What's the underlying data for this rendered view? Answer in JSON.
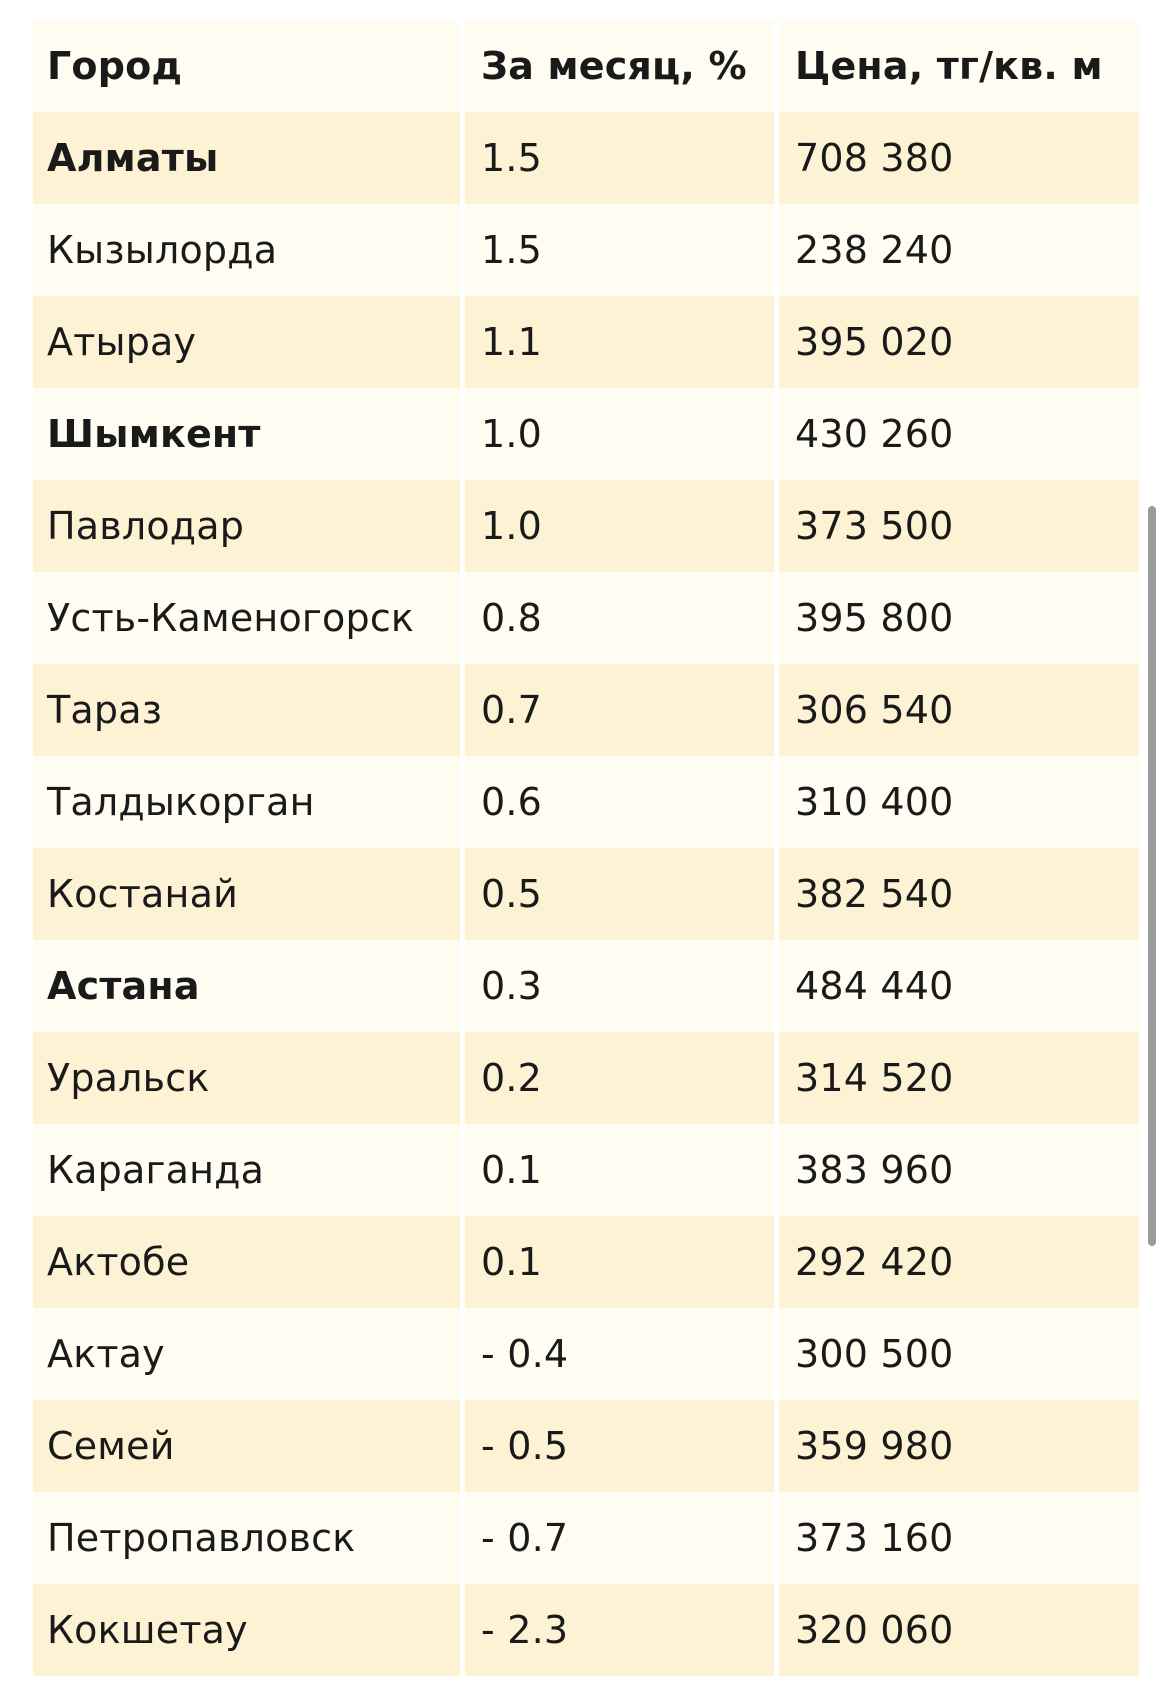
{
  "table": {
    "headers": [
      "Город",
      "За месяц, %",
      "Цена, тг/кв. м"
    ],
    "rows": [
      {
        "city": "Алматы",
        "change": "1.5",
        "price": "708 380",
        "bold": true
      },
      {
        "city": "Кызылорда",
        "change": "1.5",
        "price": "238 240",
        "bold": false
      },
      {
        "city": "Атырау",
        "change": "1.1",
        "price": "395 020",
        "bold": false
      },
      {
        "city": "Шымкент",
        "change": "1.0",
        "price": "430 260",
        "bold": true
      },
      {
        "city": "Павлодар",
        "change": "1.0",
        "price": "373 500",
        "bold": false
      },
      {
        "city": "Усть-Каменогорск",
        "change": "0.8",
        "price": "395 800",
        "bold": false
      },
      {
        "city": "Тараз",
        "change": "0.7",
        "price": "306 540",
        "bold": false
      },
      {
        "city": "Талдыкорган",
        "change": "0.6",
        "price": "310 400",
        "bold": false
      },
      {
        "city": "Костанай",
        "change": "0.5",
        "price": "382 540",
        "bold": false
      },
      {
        "city": "Астана",
        "change": "0.3",
        "price": "484 440",
        "bold": true
      },
      {
        "city": "Уральск",
        "change": "0.2",
        "price": "314 520",
        "bold": false
      },
      {
        "city": "Караганда",
        "change": "0.1",
        "price": "383 960",
        "bold": false
      },
      {
        "city": "Актобе",
        "change": "0.1",
        "price": "292 420",
        "bold": false
      },
      {
        "city": "Актау",
        "change": "- 0.4",
        "price": "300 500",
        "bold": false
      },
      {
        "city": "Семей",
        "change": "- 0.5",
        "price": "359 980",
        "bold": false
      },
      {
        "city": "Петропавловск",
        "change": "- 0.7",
        "price": "373 160",
        "bold": false
      },
      {
        "city": "Кокшетау",
        "change": "- 2.3",
        "price": "320 060",
        "bold": false
      }
    ]
  },
  "colors": {
    "row_alt": "#fdf2d3",
    "row_base": "#fffcf1"
  }
}
